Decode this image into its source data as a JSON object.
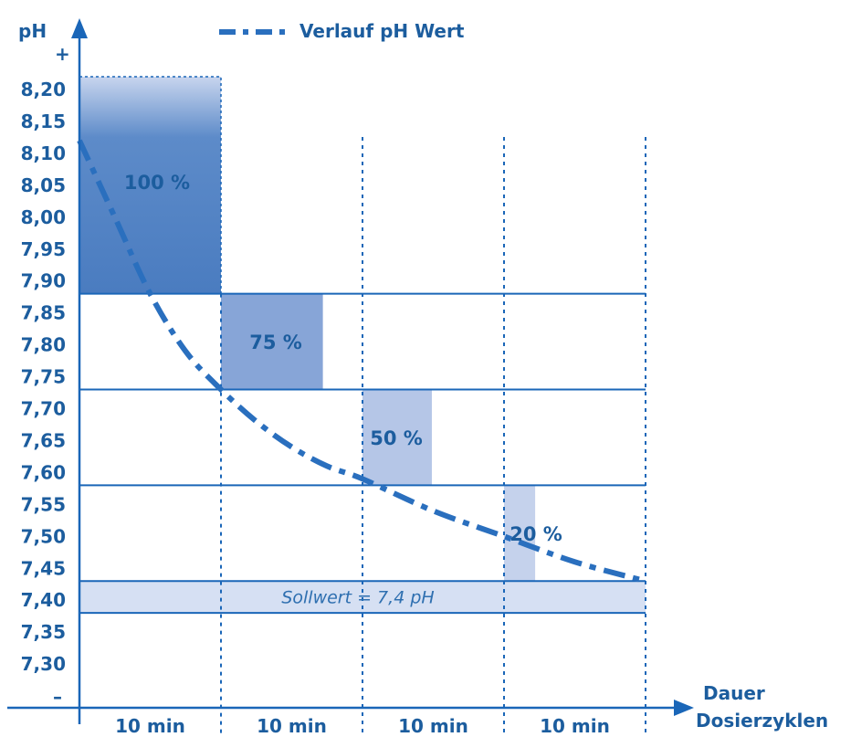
{
  "chart_data": {
    "type": "bar",
    "ylabel": "pH",
    "y_plus_symbol": "+",
    "y_minus_symbol": "–",
    "xlabel": [
      "Dauer",
      "Dosierzyklen"
    ],
    "y_ticks": [
      "8,20",
      "8,15",
      "8,10",
      "8,05",
      "8,00",
      "7,95",
      "7,90",
      "7,85",
      "7,80",
      "7,75",
      "7,70",
      "7,65",
      "7,60",
      "7,55",
      "7,50",
      "7,45",
      "7,40",
      "7,35",
      "7,30"
    ],
    "y_tick_values": [
      8.2,
      8.15,
      8.1,
      8.05,
      8.0,
      7.95,
      7.9,
      7.85,
      7.8,
      7.75,
      7.7,
      7.65,
      7.6,
      7.55,
      7.5,
      7.45,
      7.4,
      7.35,
      7.3
    ],
    "ylim": [
      7.25,
      8.25
    ],
    "categories": [
      "10 min",
      "10 min",
      "10 min",
      "10 min"
    ],
    "dosing_bars": [
      {
        "label": "100 %",
        "percent": 100,
        "ph_min": 7.88,
        "ph_max": 8.22
      },
      {
        "label": "75 %",
        "percent": 75,
        "ph_min": 7.73,
        "ph_max": 7.88
      },
      {
        "label": "50 %",
        "percent": 50,
        "ph_min": 7.58,
        "ph_max": 7.73
      },
      {
        "label": "20 %",
        "percent": 20,
        "ph_min": 7.43,
        "ph_max": 7.58
      }
    ],
    "band_thresholds": [
      7.88,
      7.73,
      7.58,
      7.43
    ],
    "setpoint": {
      "label": "Sollwert = 7,4 pH",
      "value": 7.4,
      "ph_min": 7.38,
      "ph_max": 7.43
    },
    "series": [
      {
        "name": "Verlauf pH Wert",
        "style": "dash-dot",
        "x": [
          0,
          0.25,
          0.5,
          0.75,
          1.0,
          1.25,
          1.5,
          1.75,
          2.0,
          2.5,
          3.0,
          3.5,
          4.0
        ],
        "y": [
          8.12,
          8.0,
          7.88,
          7.79,
          7.73,
          7.68,
          7.64,
          7.61,
          7.59,
          7.54,
          7.5,
          7.46,
          7.43
        ]
      }
    ],
    "legend": {
      "label": "Verlauf pH Wert",
      "placement": "top"
    },
    "colors": {
      "text": "#1c5d9e",
      "axis": "#1a66b8",
      "curve": "#2a6fbe",
      "bar_100_top": "#c5d3ec",
      "bar_100": "#4f80c3",
      "bar_75": "#87a5d7",
      "bar_50": "#b5c6e7",
      "bar_20": "#c5d2ec",
      "setpoint_band": "#d6e0f3"
    }
  }
}
